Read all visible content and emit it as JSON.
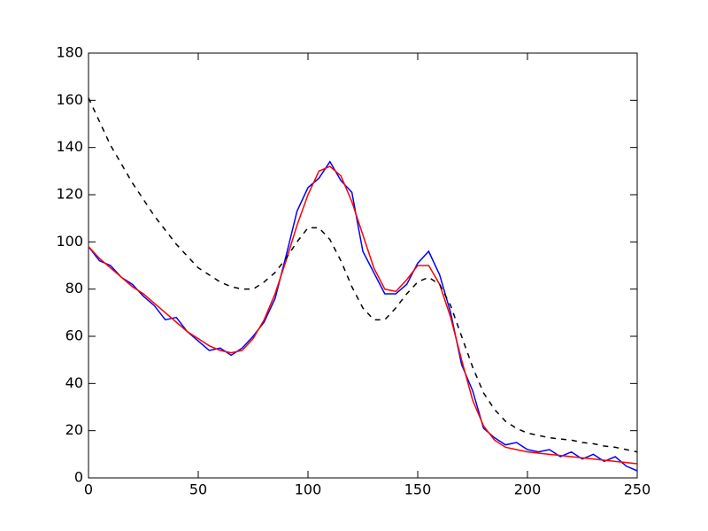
{
  "chart_data": {
    "type": "line",
    "x": [
      0,
      5,
      10,
      15,
      20,
      25,
      30,
      35,
      40,
      45,
      50,
      55,
      60,
      65,
      70,
      75,
      80,
      85,
      90,
      95,
      100,
      105,
      110,
      115,
      120,
      125,
      130,
      135,
      140,
      145,
      150,
      155,
      160,
      165,
      170,
      175,
      180,
      185,
      190,
      195,
      200,
      205,
      210,
      215,
      220,
      225,
      230,
      235,
      240,
      245,
      250
    ],
    "series": [
      {
        "color": "#0000ff",
        "linestyle": "solid",
        "values": [
          98,
          92,
          90,
          85,
          82,
          77,
          73,
          67,
          68,
          62,
          58,
          54,
          55,
          52,
          55,
          60,
          66,
          76,
          94,
          113,
          123,
          127,
          134,
          126,
          121,
          96,
          87,
          78,
          78,
          82,
          91,
          96,
          86,
          70,
          48,
          37,
          21,
          17,
          14,
          15,
          12,
          11,
          12,
          9,
          11,
          8,
          10,
          7,
          9,
          5,
          3
        ]
      },
      {
        "color": "#ff0000",
        "linestyle": "solid",
        "values": [
          98,
          93,
          89,
          85,
          81,
          78,
          74,
          70,
          66,
          62,
          59,
          56,
          54,
          53,
          54,
          59,
          67,
          78,
          92,
          107,
          120,
          130,
          132,
          128,
          117,
          103,
          89,
          80,
          79,
          84,
          90,
          90,
          82,
          68,
          50,
          33,
          22,
          16,
          13,
          12,
          11,
          10.5,
          10,
          9.5,
          9,
          8.5,
          8,
          7.5,
          7,
          6.5,
          6
        ]
      },
      {
        "color": "#000000",
        "linestyle": "dashed",
        "values": [
          161,
          151,
          141,
          133,
          125,
          118,
          111,
          105,
          99,
          94,
          89,
          86,
          83,
          81,
          80,
          80,
          83,
          87,
          93,
          100,
          106,
          106,
          101,
          92,
          81,
          72,
          67,
          67,
          72,
          78,
          83,
          85,
          82,
          73,
          60,
          47,
          36,
          29,
          24,
          21,
          19,
          18,
          17,
          16.5,
          16,
          15,
          14.5,
          13.5,
          13,
          12,
          11
        ]
      }
    ],
    "xlim": [
      0,
      250
    ],
    "xticks": [
      0,
      50,
      100,
      150,
      200,
      250
    ],
    "ylim": [
      0,
      180
    ],
    "yticks": [
      0,
      20,
      40,
      60,
      80,
      100,
      120,
      140,
      160,
      180
    ]
  }
}
